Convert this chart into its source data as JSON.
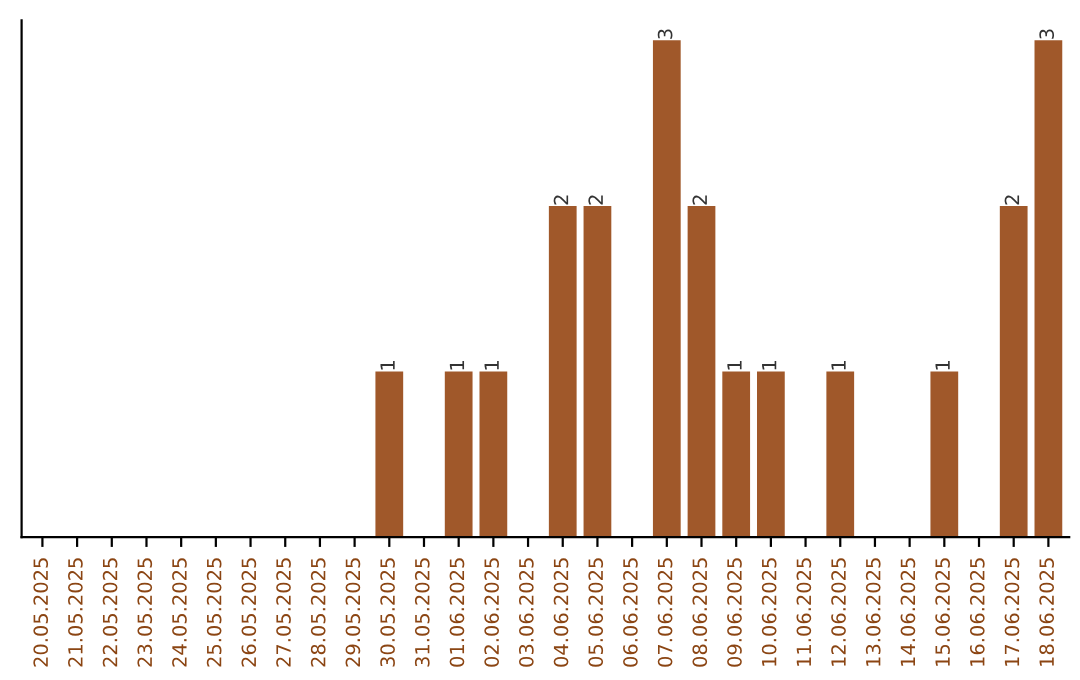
{
  "chart_data": {
    "type": "bar",
    "categories": [
      "20.05.2025",
      "21.05.2025",
      "22.05.2025",
      "23.05.2025",
      "24.05.2025",
      "25.05.2025",
      "26.05.2025",
      "27.05.2025",
      "28.05.2025",
      "29.05.2025",
      "30.05.2025",
      "31.05.2025",
      "01.06.2025",
      "02.06.2025",
      "03.06.2025",
      "04.06.2025",
      "05.06.2025",
      "06.06.2025",
      "07.06.2025",
      "08.06.2025",
      "09.06.2025",
      "10.06.2025",
      "11.06.2025",
      "12.06.2025",
      "13.06.2025",
      "14.06.2025",
      "15.06.2025",
      "16.06.2025",
      "17.06.2025",
      "18.06.2025"
    ],
    "values": [
      0,
      0,
      0,
      0,
      0,
      0,
      0,
      0,
      0,
      0,
      1,
      0,
      1,
      1,
      0,
      2,
      2,
      0,
      3,
      2,
      1,
      1,
      0,
      1,
      0,
      0,
      1,
      0,
      2,
      3
    ],
    "value_labels": [
      null,
      null,
      null,
      null,
      null,
      null,
      null,
      null,
      null,
      null,
      "1",
      null,
      "1",
      "1",
      null,
      "2",
      "2",
      null,
      "3",
      "2",
      "1",
      "1",
      null,
      "1",
      null,
      null,
      "1",
      null,
      "2",
      "3"
    ],
    "color": "#a0582a",
    "tick_labels": "x",
    "grid": false,
    "legend": false
  }
}
